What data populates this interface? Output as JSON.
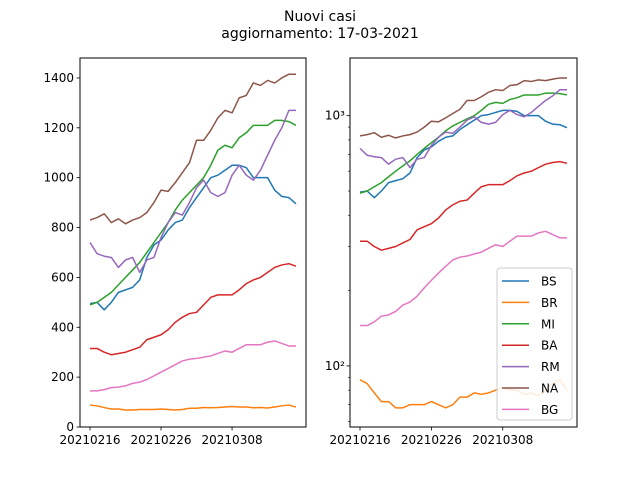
{
  "figure": {
    "title_line1": "Nuovi casi",
    "title_line2": "aggiornamento: 17-03-2021"
  },
  "chart_data": [
    {
      "type": "line",
      "yscale": "linear",
      "ylim": [
        0,
        1480
      ],
      "yticks": [
        0,
        200,
        400,
        600,
        800,
        1000,
        1200,
        1400
      ],
      "x_tick_labels": [
        "20210216",
        "20210226",
        "20210308"
      ],
      "x_tick_indices": [
        0,
        10,
        20
      ],
      "legend": "none",
      "grid": false,
      "series": [
        {
          "name": "BS",
          "color": "#1f77b4",
          "values": [
            495,
            500,
            470,
            500,
            540,
            550,
            560,
            590,
            680,
            730,
            750,
            790,
            820,
            830,
            880,
            920,
            960,
            1000,
            1010,
            1030,
            1050,
            1050,
            1040,
            1000,
            1000,
            1000,
            950,
            925,
            920,
            895
          ]
        },
        {
          "name": "BR",
          "color": "#ff7f0e",
          "values": [
            88,
            85,
            78,
            72,
            72,
            68,
            68,
            70,
            70,
            70,
            72,
            70,
            68,
            70,
            75,
            75,
            78,
            77,
            78,
            80,
            82,
            80,
            80,
            77,
            78,
            76,
            80,
            85,
            88,
            80
          ]
        },
        {
          "name": "MI",
          "color": "#2ca02c",
          "values": [
            490,
            500,
            520,
            540,
            570,
            600,
            630,
            660,
            700,
            740,
            780,
            820,
            870,
            910,
            940,
            970,
            1000,
            1050,
            1110,
            1130,
            1120,
            1160,
            1180,
            1210,
            1210,
            1210,
            1230,
            1230,
            1225,
            1210
          ]
        },
        {
          "name": "BA",
          "color": "#d62728",
          "values": [
            315,
            315,
            300,
            290,
            295,
            300,
            310,
            320,
            350,
            360,
            370,
            390,
            420,
            440,
            455,
            460,
            490,
            520,
            530,
            530,
            530,
            550,
            575,
            590,
            600,
            620,
            640,
            650,
            655,
            645
          ]
        },
        {
          "name": "RM",
          "color": "#9467bd",
          "values": [
            740,
            695,
            685,
            680,
            640,
            670,
            680,
            620,
            670,
            680,
            760,
            820,
            860,
            850,
            900,
            960,
            990,
            940,
            925,
            940,
            1010,
            1050,
            1010,
            990,
            1030,
            1090,
            1150,
            1200,
            1270,
            1270
          ]
        },
        {
          "name": "NA",
          "color": "#8c564b",
          "values": [
            830,
            840,
            855,
            820,
            835,
            815,
            830,
            840,
            860,
            900,
            950,
            945,
            980,
            1020,
            1060,
            1150,
            1150,
            1190,
            1240,
            1270,
            1260,
            1320,
            1330,
            1380,
            1370,
            1390,
            1380,
            1400,
            1415,
            1415
          ]
        },
        {
          "name": "BG",
          "color": "#e377c2",
          "values": [
            145,
            145,
            150,
            158,
            160,
            165,
            175,
            180,
            190,
            205,
            220,
            235,
            250,
            265,
            272,
            275,
            280,
            285,
            295,
            305,
            300,
            315,
            330,
            330,
            330,
            340,
            345,
            335,
            325,
            325
          ]
        }
      ]
    },
    {
      "type": "line",
      "yscale": "log",
      "ylim": [
        57,
        1700
      ],
      "yticks": [
        100,
        1000
      ],
      "ytick_labels": [
        "10²",
        "10³"
      ],
      "x_tick_labels": [
        "20210216",
        "20210226",
        "20210308"
      ],
      "x_tick_indices": [
        0,
        10,
        20
      ],
      "legend": "lower right",
      "grid": false,
      "series_ref": "same as left panel"
    }
  ]
}
